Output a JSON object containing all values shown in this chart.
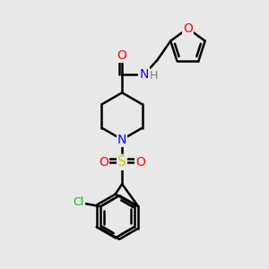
{
  "bg_color": "#e8e8e8",
  "bond_color": "#000000",
  "bond_width": 1.8,
  "atom_colors": {
    "O": "#ff0000",
    "N": "#0000ff",
    "S": "#cccc00",
    "Cl": "#00bb00",
    "H": "#7a7a7a",
    "C": "#000000"
  },
  "fig_size": [
    3.0,
    3.0
  ],
  "dpi": 100,
  "xlim": [
    0,
    10
  ],
  "ylim": [
    0,
    10
  ]
}
